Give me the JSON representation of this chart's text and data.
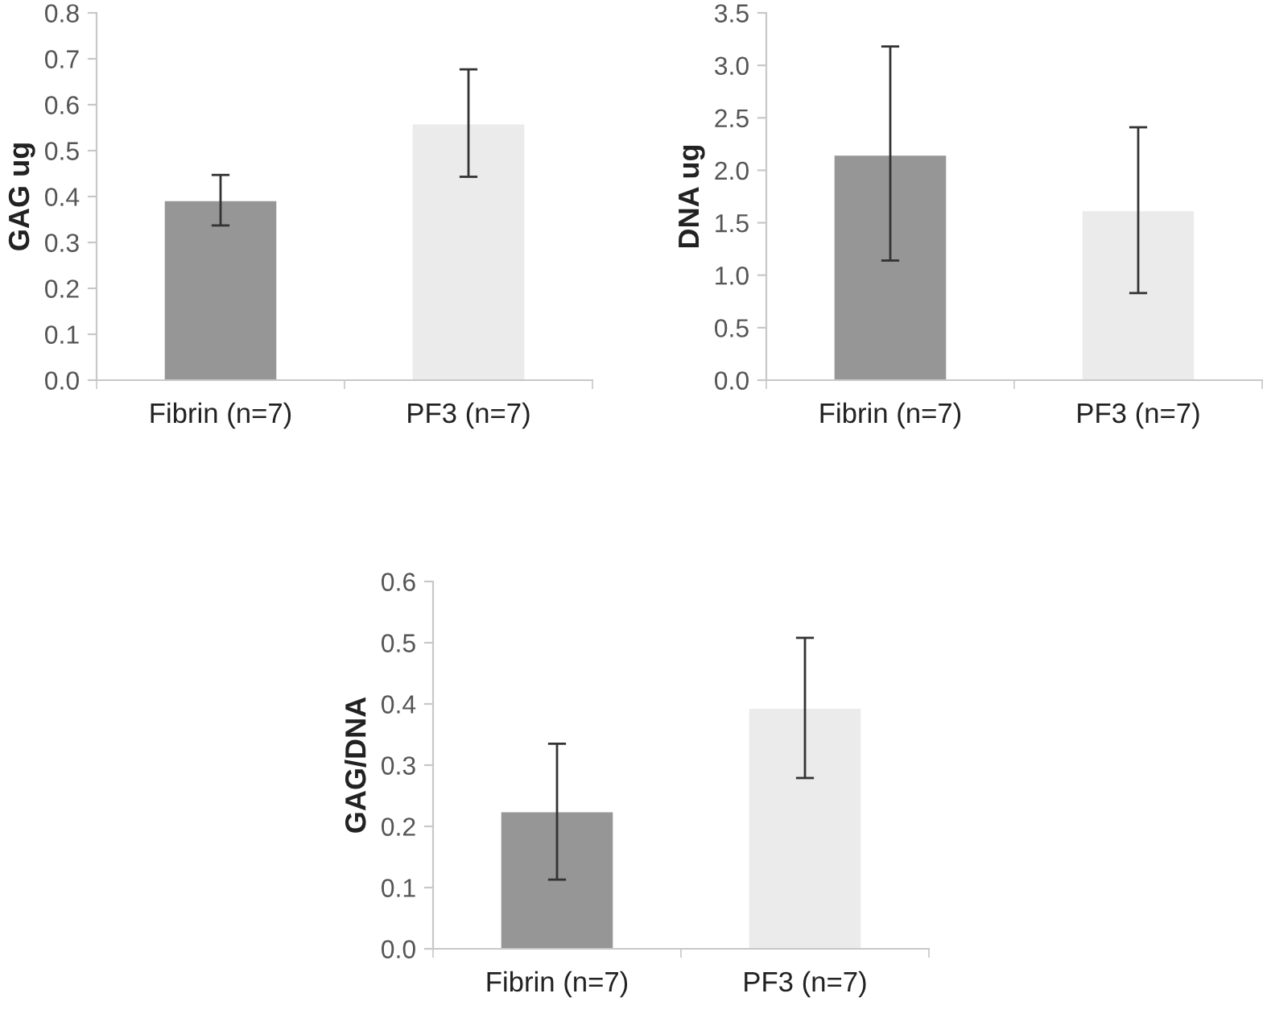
{
  "chart_data": [
    {
      "type": "bar",
      "ylabel": "GAG ug",
      "categories": [
        "Fibrin (n=7)",
        "PF3 (n=7)"
      ],
      "values": [
        0.39,
        0.557
      ],
      "colors": [
        "#969696",
        "#ebebeb"
      ],
      "errors": [
        [
          0.337,
          0.447
        ],
        [
          0.443,
          0.677
        ]
      ],
      "ylim": [
        0,
        0.8
      ],
      "yticks": [
        {
          "value": 0,
          "label": "0.0"
        },
        0.1,
        0.2,
        0.3,
        0.4,
        0.5,
        0.6,
        0.7,
        0.8
      ],
      "grid": false,
      "legend": false
    },
    {
      "type": "bar",
      "ylabel": "DNA ug",
      "categories": [
        "Fibrin (n=7)",
        "PF3 (n=7)"
      ],
      "values": [
        2.14,
        1.61
      ],
      "colors": [
        "#969696",
        "#ebebeb"
      ],
      "errors": [
        [
          1.14,
          3.18
        ],
        [
          0.83,
          2.41
        ]
      ],
      "ylim": [
        0,
        3.5
      ],
      "yticks": [
        {
          "value": 0,
          "label": "0.0"
        },
        0.5,
        {
          "value": 1,
          "label": "1.0"
        },
        1.5,
        {
          "value": 2,
          "label": "2.0"
        },
        2.5,
        {
          "value": 3,
          "label": "3.0"
        },
        3.5
      ],
      "grid": false,
      "legend": false
    },
    {
      "type": "bar",
      "ylabel": "GAG/DNA",
      "categories": [
        "Fibrin (n=7)",
        "PF3 (n=7)"
      ],
      "values": [
        0.223,
        0.392
      ],
      "colors": [
        "#969696",
        "#ebebeb"
      ],
      "errors": [
        [
          0.113,
          0.335
        ],
        [
          0.279,
          0.508
        ]
      ],
      "ylim": [
        0,
        0.6
      ],
      "yticks": [
        {
          "value": 0,
          "label": "0.0"
        },
        0.1,
        0.2,
        0.3,
        0.4,
        0.5,
        0.6
      ],
      "grid": false,
      "legend": false
    }
  ]
}
